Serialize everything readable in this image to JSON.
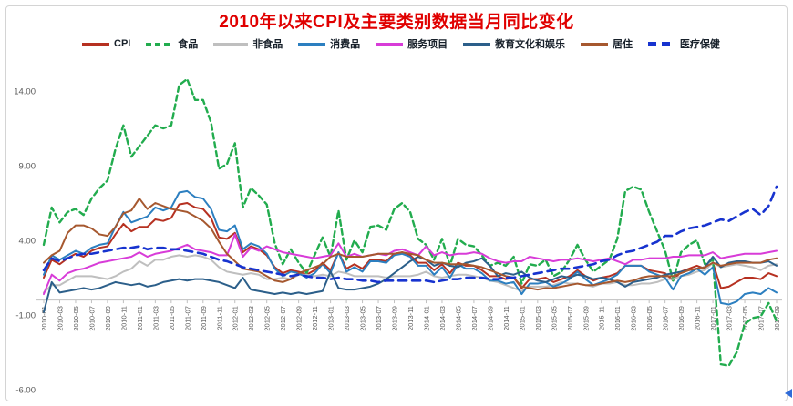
{
  "chart_data": {
    "type": "line",
    "title": "2010年以来CPI及主要类别数据当月同比变化",
    "title_color": "#e00000",
    "xlabel": "",
    "ylabel": "",
    "grid": false,
    "legend_position": "top",
    "axis_color": "#c0c0c0",
    "tick_text_color": "#595959",
    "ylim": [
      -6.8,
      15.3
    ],
    "y_tick_labels": [
      "14.00",
      "9.00",
      "4.00",
      "-1.00",
      "-6.00"
    ],
    "x_tick_step": 2,
    "x_months": [
      "2010-01",
      "2010-02",
      "2010-03",
      "2010-04",
      "2010-05",
      "2010-06",
      "2010-07",
      "2010-08",
      "2010-09",
      "2010-10",
      "2010-11",
      "2010-12",
      "2011-01",
      "2011-02",
      "2011-03",
      "2011-04",
      "2011-05",
      "2011-06",
      "2011-07",
      "2011-08",
      "2011-09",
      "2011-10",
      "2011-11",
      "2011-12",
      "2012-01",
      "2012-02",
      "2012-03",
      "2012-04",
      "2012-05",
      "2012-06",
      "2012-07",
      "2012-08",
      "2012-09",
      "2012-10",
      "2012-11",
      "2012-12",
      "2013-01",
      "2013-02",
      "2013-03",
      "2013-04",
      "2013-05",
      "2013-06",
      "2013-07",
      "2013-08",
      "2013-09",
      "2013-10",
      "2013-11",
      "2013-12",
      "2014-01",
      "2014-02",
      "2014-03",
      "2014-04",
      "2014-05",
      "2014-06",
      "2014-07",
      "2014-08",
      "2014-09",
      "2014-10",
      "2014-11",
      "2014-12",
      "2015-01",
      "2015-02",
      "2015-03",
      "2015-04",
      "2015-05",
      "2015-06",
      "2015-07",
      "2015-08",
      "2015-09",
      "2015-10",
      "2015-11",
      "2015-12",
      "2016-01",
      "2016-02",
      "2016-03",
      "2016-04",
      "2016-05",
      "2016-06",
      "2016-07",
      "2016-08",
      "2016-09",
      "2016-10",
      "2016-11",
      "2016-12",
      "2017-01",
      "2017-02",
      "2017-03",
      "2017-04",
      "2017-05",
      "2017-06",
      "2017-07",
      "2017-08",
      "2017-09"
    ],
    "series": [
      {
        "name": "CPI",
        "color": "#b63121",
        "style": "solid",
        "width": 2,
        "values": [
          1.5,
          2.7,
          2.4,
          2.8,
          3.1,
          2.9,
          3.3,
          3.5,
          3.6,
          4.4,
          5.1,
          4.6,
          4.9,
          4.9,
          5.4,
          5.3,
          5.5,
          6.4,
          6.5,
          6.2,
          6.1,
          5.5,
          4.2,
          4.1,
          4.5,
          3.2,
          3.6,
          3.4,
          3.0,
          2.2,
          1.8,
          2.0,
          1.9,
          1.7,
          2.0,
          2.5,
          2.0,
          3.2,
          2.1,
          2.4,
          2.1,
          2.7,
          2.7,
          2.6,
          3.1,
          3.2,
          3.0,
          2.5,
          2.5,
          2.0,
          2.4,
          1.8,
          2.5,
          2.3,
          2.3,
          2.0,
          1.6,
          1.6,
          1.4,
          1.5,
          0.8,
          1.4,
          1.4,
          1.5,
          1.2,
          1.4,
          1.6,
          2.0,
          1.6,
          1.3,
          1.5,
          1.6,
          1.8,
          2.3,
          2.3,
          2.3,
          2.0,
          1.9,
          1.8,
          1.3,
          1.9,
          2.1,
          2.3,
          2.1,
          2.5,
          0.8,
          0.9,
          1.2,
          1.5,
          1.5,
          1.4,
          1.8,
          1.6
        ]
      },
      {
        "name": "食品",
        "color": "#22ac4e",
        "style": "dashed",
        "width": 2.4,
        "values": [
          3.7,
          6.2,
          5.2,
          5.9,
          6.1,
          5.7,
          6.8,
          7.5,
          8.0,
          10.1,
          11.7,
          9.6,
          10.3,
          11.0,
          11.7,
          11.5,
          11.7,
          14.4,
          14.8,
          13.4,
          13.4,
          11.9,
          8.8,
          9.1,
          10.5,
          6.2,
          7.5,
          7.0,
          6.4,
          3.8,
          2.4,
          3.4,
          2.5,
          1.8,
          3.0,
          4.2,
          2.9,
          6.0,
          2.7,
          4.0,
          3.2,
          4.9,
          5.0,
          4.7,
          6.1,
          6.5,
          5.9,
          4.1,
          3.7,
          2.7,
          4.1,
          2.3,
          4.1,
          3.7,
          3.6,
          3.0,
          2.3,
          2.5,
          2.3,
          2.9,
          1.1,
          2.4,
          2.3,
          2.7,
          1.6,
          1.9,
          2.7,
          3.7,
          2.7,
          1.9,
          2.3,
          2.7,
          4.1,
          7.3,
          7.6,
          7.4,
          5.9,
          4.6,
          3.3,
          1.3,
          3.2,
          3.7,
          4.0,
          2.4,
          2.7,
          -4.3,
          -4.4,
          -3.5,
          -1.6,
          -1.2,
          -1.1,
          -0.2,
          -1.4
        ]
      },
      {
        "name": "非食品",
        "color": "#bfbfbf",
        "style": "solid",
        "width": 2,
        "values": [
          0.5,
          1.0,
          1.0,
          1.3,
          1.6,
          1.6,
          1.6,
          1.5,
          1.4,
          1.6,
          1.9,
          2.1,
          2.6,
          2.3,
          2.7,
          2.7,
          2.9,
          3.0,
          2.9,
          3.0,
          2.9,
          2.7,
          2.2,
          1.9,
          1.8,
          1.7,
          1.8,
          1.7,
          1.4,
          1.4,
          1.5,
          1.4,
          1.7,
          1.7,
          1.6,
          1.7,
          1.6,
          1.9,
          1.8,
          1.6,
          1.6,
          1.6,
          1.6,
          1.5,
          1.6,
          1.6,
          1.6,
          1.7,
          1.9,
          1.6,
          1.5,
          1.6,
          1.7,
          1.7,
          1.6,
          1.5,
          1.3,
          1.2,
          1.0,
          0.8,
          0.6,
          0.9,
          0.9,
          0.9,
          1.0,
          1.2,
          1.1,
          1.1,
          1.0,
          0.9,
          1.1,
          1.1,
          1.2,
          1.0,
          1.0,
          1.1,
          1.1,
          1.2,
          1.4,
          1.4,
          1.6,
          1.7,
          1.9,
          2.0,
          2.5,
          2.2,
          2.3,
          2.4,
          2.3,
          2.2,
          2.0,
          2.3,
          2.4
        ]
      },
      {
        "name": "消费品",
        "color": "#2c7fc0",
        "style": "solid",
        "width": 2,
        "values": [
          1.7,
          3.0,
          2.7,
          3.0,
          3.3,
          3.1,
          3.5,
          3.7,
          3.8,
          4.9,
          5.9,
          5.2,
          5.4,
          5.6,
          6.2,
          6.0,
          6.2,
          7.2,
          7.3,
          6.9,
          6.8,
          6.1,
          4.7,
          4.6,
          5.0,
          3.4,
          3.8,
          3.6,
          3.1,
          2.1,
          1.6,
          1.9,
          1.8,
          1.5,
          1.8,
          2.4,
          1.8,
          3.2,
          1.9,
          2.2,
          1.9,
          2.6,
          2.6,
          2.5,
          3.0,
          3.1,
          2.9,
          2.3,
          2.3,
          1.7,
          2.2,
          1.5,
          2.4,
          2.1,
          2.1,
          1.8,
          1.3,
          1.3,
          1.1,
          1.2,
          0.4,
          1.1,
          1.1,
          1.2,
          0.9,
          1.1,
          1.4,
          1.9,
          1.4,
          1.0,
          1.2,
          1.4,
          1.7,
          2.3,
          2.3,
          2.3,
          1.9,
          1.7,
          1.5,
          0.7,
          1.6,
          1.8,
          2.1,
          1.7,
          2.2,
          -0.2,
          -0.3,
          -0.1,
          0.4,
          0.5,
          0.4,
          0.8,
          0.5
        ]
      },
      {
        "name": "服务项目",
        "color": "#d83cd8",
        "style": "solid",
        "width": 2,
        "values": [
          0.4,
          1.7,
          1.3,
          1.8,
          2.0,
          2.1,
          2.3,
          2.5,
          2.6,
          2.7,
          2.8,
          2.9,
          3.2,
          2.9,
          3.1,
          3.2,
          3.3,
          3.5,
          3.7,
          3.4,
          3.3,
          3.2,
          3.0,
          3.0,
          4.4,
          2.9,
          3.5,
          3.3,
          3.6,
          3.4,
          3.2,
          3.1,
          3.0,
          2.9,
          2.8,
          2.9,
          3.0,
          3.8,
          2.9,
          3.1,
          2.9,
          3.0,
          3.1,
          3.0,
          3.3,
          3.4,
          3.2,
          3.0,
          3.6,
          3.0,
          3.2,
          3.0,
          3.1,
          3.1,
          3.2,
          3.1,
          2.8,
          2.6,
          2.5,
          2.6,
          2.6,
          2.9,
          2.8,
          2.7,
          2.6,
          2.7,
          2.7,
          2.8,
          2.7,
          2.6,
          2.7,
          2.8,
          2.6,
          2.4,
          2.7,
          2.7,
          2.8,
          2.8,
          2.8,
          2.9,
          2.9,
          3.0,
          3.0,
          3.0,
          3.2,
          2.8,
          2.9,
          3.0,
          3.1,
          3.1,
          3.1,
          3.2,
          3.3
        ]
      },
      {
        "name": "教育文化和娱乐",
        "color": "#2c5f8a",
        "style": "solid",
        "width": 2,
        "values": [
          -0.8,
          1.2,
          0.5,
          0.6,
          0.7,
          0.8,
          0.7,
          0.8,
          1.0,
          1.2,
          1.1,
          1.0,
          1.1,
          0.9,
          1.0,
          1.2,
          1.3,
          1.4,
          1.3,
          1.4,
          1.4,
          1.3,
          1.2,
          1.0,
          0.8,
          1.5,
          0.7,
          0.6,
          0.5,
          0.4,
          0.5,
          0.4,
          0.5,
          0.4,
          0.5,
          0.6,
          1.9,
          0.8,
          0.7,
          0.7,
          0.8,
          0.9,
          1.1,
          1.4,
          1.8,
          2.2,
          2.6,
          2.9,
          2.7,
          2.3,
          2.5,
          2.3,
          2.2,
          2.5,
          2.6,
          2.8,
          2.3,
          1.6,
          1.8,
          1.7,
          1.9,
          1.5,
          1.3,
          1.2,
          1.4,
          1.6,
          1.5,
          1.7,
          1.6,
          1.4,
          1.5,
          1.4,
          1.2,
          0.9,
          1.2,
          1.3,
          1.4,
          1.5,
          1.7,
          1.8,
          1.9,
          2.0,
          2.1,
          2.2,
          2.9,
          2.2,
          2.5,
          2.6,
          2.6,
          2.5,
          2.5,
          2.6,
          2.3
        ]
      },
      {
        "name": "居住",
        "color": "#a6582f",
        "style": "solid",
        "width": 2,
        "values": [
          2.5,
          3.0,
          3.3,
          4.5,
          5.0,
          5.0,
          4.8,
          4.4,
          4.3,
          4.9,
          5.8,
          6.0,
          6.8,
          6.1,
          6.5,
          6.3,
          6.1,
          6.0,
          5.9,
          5.6,
          5.3,
          4.8,
          3.9,
          3.1,
          2.6,
          2.1,
          2.0,
          1.9,
          1.6,
          1.3,
          1.2,
          1.4,
          1.8,
          2.0,
          2.2,
          2.4,
          2.9,
          3.1,
          2.9,
          2.9,
          2.9,
          3.0,
          3.1,
          3.1,
          3.1,
          3.2,
          3.1,
          3.0,
          2.7,
          2.5,
          2.5,
          2.4,
          2.4,
          2.4,
          2.3,
          2.2,
          2.0,
          1.8,
          1.6,
          1.5,
          0.9,
          0.8,
          0.7,
          0.8,
          0.8,
          0.9,
          1.0,
          1.1,
          1.0,
          1.0,
          1.1,
          1.2,
          1.3,
          1.2,
          1.3,
          1.5,
          1.6,
          1.6,
          1.6,
          1.6,
          1.8,
          2.0,
          2.1,
          2.2,
          2.5,
          2.3,
          2.4,
          2.5,
          2.5,
          2.5,
          2.5,
          2.7,
          2.8
        ]
      },
      {
        "name": "医疗保健",
        "color": "#1733cf",
        "style": "dashed-long",
        "width": 2.6,
        "values": [
          2.0,
          2.8,
          2.6,
          2.8,
          3.0,
          3.1,
          3.1,
          3.2,
          3.3,
          3.4,
          3.5,
          3.5,
          3.6,
          3.4,
          3.5,
          3.5,
          3.4,
          3.4,
          3.3,
          3.2,
          3.1,
          2.9,
          2.7,
          2.6,
          2.4,
          2.2,
          2.1,
          2.0,
          1.9,
          1.8,
          1.7,
          1.6,
          1.7,
          1.6,
          1.5,
          1.5,
          1.4,
          1.5,
          1.4,
          1.4,
          1.3,
          1.3,
          1.2,
          1.3,
          1.3,
          1.3,
          1.3,
          1.3,
          1.3,
          1.2,
          1.3,
          1.4,
          1.4,
          1.5,
          1.5,
          1.5,
          1.4,
          1.4,
          1.5,
          1.5,
          1.6,
          1.7,
          1.8,
          1.9,
          2.0,
          2.1,
          2.1,
          2.2,
          2.3,
          2.4,
          2.6,
          2.7,
          3.0,
          3.2,
          3.3,
          3.5,
          3.7,
          3.9,
          4.3,
          4.3,
          4.6,
          4.8,
          4.9,
          5.0,
          5.2,
          5.4,
          5.3,
          5.6,
          5.9,
          6.1,
          5.7,
          6.3,
          7.6
        ]
      }
    ]
  },
  "icons": {
    "scroll_left_arrow": "left-triangle",
    "scroll_arrow_color": "#2f6bd8"
  }
}
